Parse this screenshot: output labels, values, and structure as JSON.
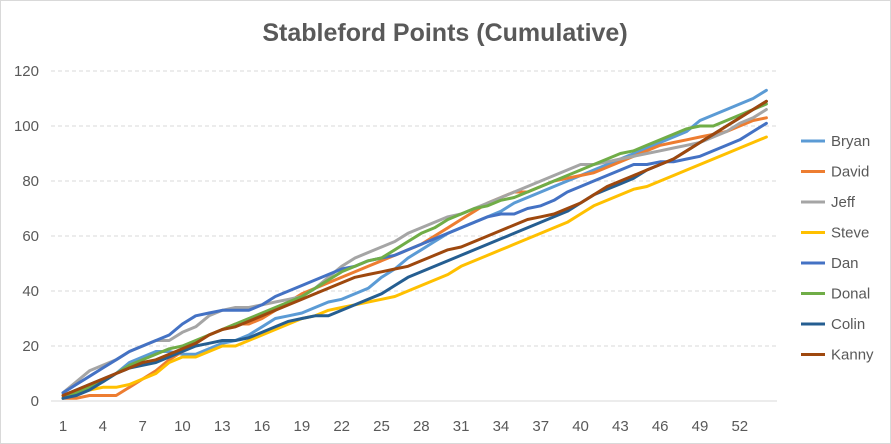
{
  "chart_data": {
    "type": "line",
    "title": "Stableford Points (Cumulative)",
    "xlabel": "",
    "ylabel": "",
    "x": [
      1,
      2,
      3,
      4,
      5,
      6,
      7,
      8,
      9,
      10,
      11,
      12,
      13,
      14,
      15,
      16,
      17,
      18,
      19,
      20,
      21,
      22,
      23,
      24,
      25,
      26,
      27,
      28,
      29,
      30,
      31,
      32,
      33,
      34,
      35,
      36,
      37,
      38,
      39,
      40,
      41,
      42,
      43,
      44,
      45,
      46,
      47,
      48,
      49,
      50,
      51,
      52,
      53,
      54
    ],
    "x_tick_labels": [
      "1",
      "4",
      "7",
      "10",
      "13",
      "16",
      "19",
      "22",
      "25",
      "28",
      "31",
      "34",
      "37",
      "40",
      "43",
      "46",
      "49",
      "52"
    ],
    "ylim": [
      0,
      120
    ],
    "y_ticks": [
      0,
      20,
      40,
      60,
      80,
      100,
      120
    ],
    "grid": "horizontal dashed",
    "legend_position": "right",
    "series": [
      {
        "name": "Bryan",
        "color": "#5B9BD5",
        "values": [
          2,
          4,
          6,
          8,
          10,
          14,
          16,
          18,
          18,
          17,
          17,
          19,
          21,
          22,
          24,
          27,
          30,
          31,
          32,
          34,
          36,
          37,
          39,
          41,
          45,
          48,
          52,
          55,
          58,
          61,
          63,
          65,
          67,
          69,
          72,
          74,
          76,
          78,
          80,
          82,
          84,
          86,
          88,
          90,
          92,
          94,
          96,
          98,
          102,
          104,
          106,
          108,
          110,
          113
        ]
      },
      {
        "name": "David",
        "color": "#ED7D31",
        "values": [
          1,
          1,
          2,
          2,
          2,
          5,
          8,
          11,
          15,
          18,
          21,
          24,
          26,
          28,
          28,
          30,
          33,
          36,
          39,
          41,
          43,
          45,
          47,
          49,
          51,
          53,
          55,
          57,
          60,
          63,
          66,
          69,
          72,
          74,
          76,
          76,
          78,
          80,
          81,
          82,
          83,
          85,
          87,
          89,
          91,
          93,
          94,
          95,
          96,
          97,
          98,
          100,
          102,
          103
        ]
      },
      {
        "name": "Jeff",
        "color": "#A5A5A5",
        "values": [
          3,
          7,
          11,
          13,
          15,
          18,
          20,
          22,
          22,
          25,
          27,
          31,
          33,
          34,
          34,
          35,
          36,
          37,
          38,
          41,
          45,
          49,
          52,
          54,
          56,
          58,
          61,
          63,
          65,
          67,
          68,
          70,
          72,
          74,
          76,
          78,
          80,
          82,
          84,
          86,
          86,
          87,
          88,
          89,
          90,
          91,
          92,
          93,
          94,
          96,
          98,
          101,
          103,
          106
        ]
      },
      {
        "name": "Steve",
        "color": "#FFC000",
        "values": [
          2,
          3,
          4,
          5,
          5,
          6,
          8,
          10,
          14,
          16,
          16,
          18,
          20,
          20,
          22,
          24,
          26,
          28,
          30,
          31,
          33,
          34,
          35,
          36,
          37,
          38,
          40,
          42,
          44,
          46,
          49,
          51,
          53,
          55,
          57,
          59,
          61,
          63,
          65,
          68,
          71,
          73,
          75,
          77,
          78,
          80,
          82,
          84,
          86,
          88,
          90,
          92,
          94,
          96
        ]
      },
      {
        "name": "Dan",
        "color": "#4472C4",
        "values": [
          3,
          6,
          9,
          12,
          15,
          18,
          20,
          22,
          24,
          28,
          31,
          32,
          33,
          33,
          33,
          35,
          38,
          40,
          42,
          44,
          46,
          48,
          49,
          51,
          52,
          53,
          55,
          57,
          59,
          61,
          63,
          65,
          67,
          68,
          68,
          70,
          71,
          73,
          76,
          78,
          80,
          82,
          84,
          86,
          86,
          87,
          87,
          88,
          89,
          91,
          93,
          95,
          98,
          101
        ]
      },
      {
        "name": "Donal",
        "color": "#70AD47",
        "values": [
          1,
          3,
          5,
          7,
          10,
          13,
          15,
          17,
          19,
          20,
          22,
          24,
          26,
          28,
          30,
          32,
          34,
          36,
          38,
          41,
          44,
          47,
          49,
          51,
          52,
          55,
          58,
          61,
          63,
          66,
          68,
          70,
          71,
          73,
          74,
          76,
          78,
          80,
          82,
          84,
          86,
          88,
          90,
          91,
          93,
          95,
          97,
          99,
          100,
          100,
          102,
          104,
          106,
          108
        ]
      },
      {
        "name": "Colin",
        "color": "#255E91",
        "values": [
          1,
          2,
          4,
          7,
          10,
          12,
          13,
          14,
          16,
          18,
          20,
          21,
          22,
          22,
          23,
          25,
          27,
          29,
          30,
          31,
          31,
          33,
          35,
          37,
          39,
          42,
          45,
          47,
          49,
          51,
          53,
          55,
          57,
          59,
          61,
          63,
          65,
          67,
          69,
          72,
          75,
          77,
          79,
          81,
          84,
          86,
          88,
          91,
          94,
          97,
          100,
          103,
          106,
          109
        ]
      },
      {
        "name": "Kanny",
        "color": "#9E480E",
        "values": [
          2,
          4,
          6,
          8,
          10,
          12,
          14,
          15,
          17,
          19,
          21,
          24,
          26,
          27,
          29,
          31,
          33,
          35,
          37,
          39,
          41,
          43,
          45,
          46,
          47,
          48,
          49,
          51,
          53,
          55,
          56,
          58,
          60,
          62,
          64,
          66,
          67,
          68,
          70,
          72,
          75,
          78,
          80,
          82,
          84,
          86,
          88,
          91,
          94,
          97,
          100,
          103,
          106,
          109
        ]
      }
    ]
  }
}
